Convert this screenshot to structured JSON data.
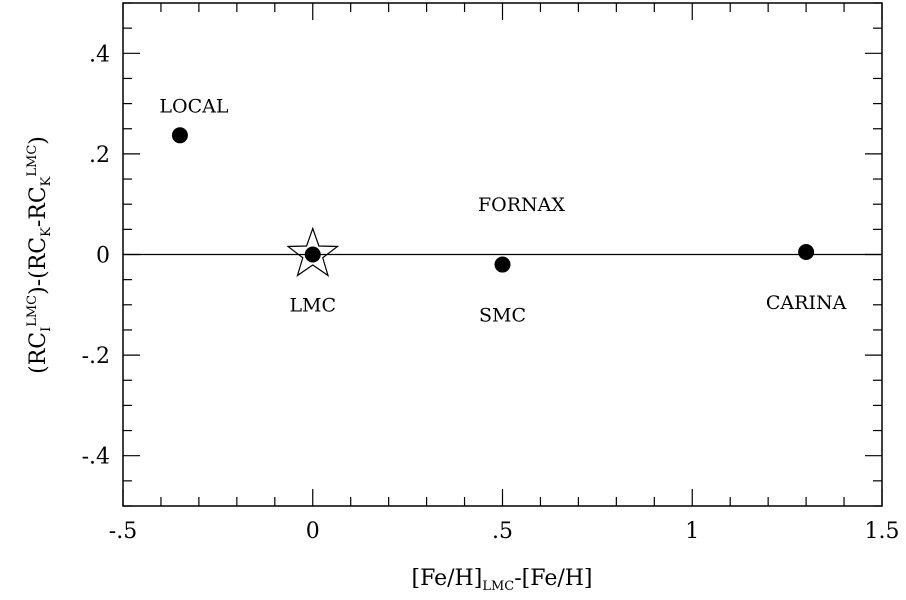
{
  "chart_data": {
    "type": "scatter",
    "title": "",
    "xlim": [
      -0.5,
      1.5
    ],
    "ylim": [
      -0.5,
      0.5
    ],
    "grid": false,
    "reference_line_y": 0,
    "xticks": [
      {
        "value": -0.5,
        "label": "-.5"
      },
      {
        "value": 0,
        "label": "0"
      },
      {
        "value": 0.5,
        "label": ".5"
      },
      {
        "value": 1,
        "label": "1"
      },
      {
        "value": 1.5,
        "label": "1.5"
      }
    ],
    "yticks": [
      {
        "value": -0.4,
        "label": "-.4"
      },
      {
        "value": -0.2,
        "label": "-.2"
      },
      {
        "value": 0,
        "label": "0"
      },
      {
        "value": 0.2,
        "label": ".2"
      },
      {
        "value": 0.4,
        "label": ".4"
      }
    ],
    "xlabel": {
      "part1": "[Fe/H]",
      "sub1": "LMC",
      "part2": "-[Fe/H]"
    },
    "ylabel": {
      "p1": "(RC",
      "s1": "I",
      "sup1": "LMC",
      "p2": ")-(RC",
      "s2": "K",
      "p3": "-RC",
      "s3": "K",
      "sup2": "LMC",
      "p4": ")"
    },
    "points": [
      {
        "label": "LOCAL",
        "x": -0.35,
        "y": 0.237,
        "marker": "circle",
        "label_position": "above"
      },
      {
        "label": "LMC",
        "x": 0.0,
        "y": 0.0,
        "marker": "circle-star",
        "label_position": "below"
      },
      {
        "label": "SMC",
        "x": 0.5,
        "y": -0.02,
        "marker": "circle",
        "label_position": "below"
      },
      {
        "label": "CARINA",
        "x": 1.3,
        "y": 0.005,
        "marker": "circle",
        "label_position": "below"
      }
    ],
    "annotations": [
      {
        "text": "FORNAX",
        "x": 0.55,
        "y": 0.1
      }
    ]
  }
}
